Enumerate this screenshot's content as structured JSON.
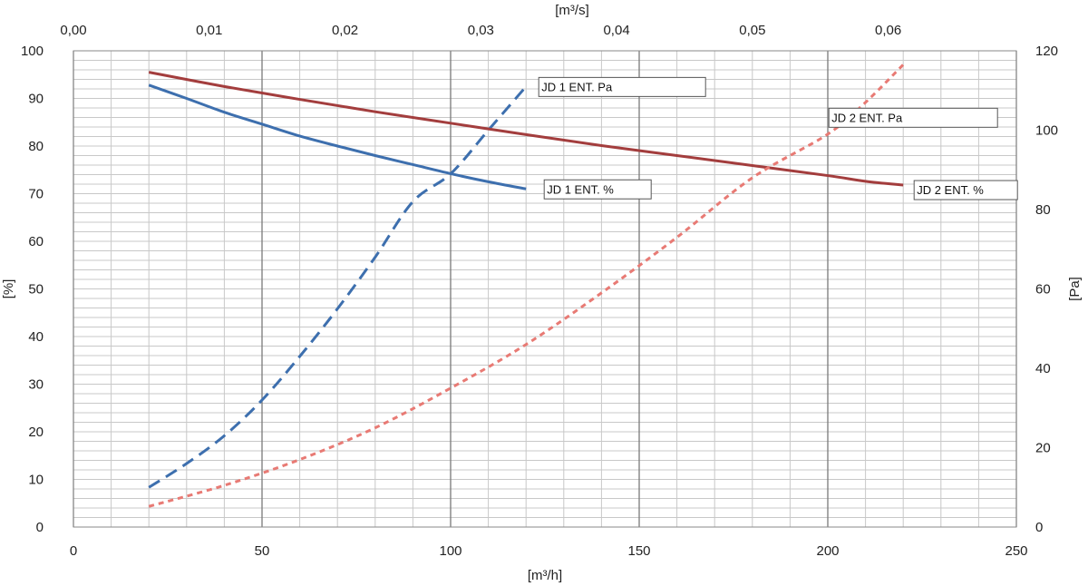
{
  "chart_data": {
    "type": "line",
    "title": "",
    "bottom_axis": {
      "title": "[m³/h]",
      "range": [
        0,
        250
      ],
      "ticks": [
        0,
        50,
        100,
        150,
        200,
        250
      ],
      "tick_labels": [
        "0",
        "50",
        "100",
        "150",
        "200",
        "250"
      ]
    },
    "top_axis": {
      "title": "[m³/s]",
      "range": [
        0,
        0.06944
      ],
      "ticks": [
        0,
        0.01,
        0.02,
        0.03,
        0.04,
        0.05,
        0.06
      ],
      "tick_labels": [
        "0,00",
        "0,01",
        "0,02",
        "0,03",
        "0,04",
        "0,05",
        "0,06"
      ]
    },
    "left_axis": {
      "title": "[%]",
      "range": [
        0,
        100
      ],
      "ticks": [
        0,
        10,
        20,
        30,
        40,
        50,
        60,
        70,
        80,
        90,
        100
      ],
      "tick_labels": [
        "0",
        "10",
        "20",
        "30",
        "40",
        "50",
        "60",
        "70",
        "80",
        "90",
        "100"
      ]
    },
    "right_axis": {
      "title": "[Pa]",
      "range": [
        0,
        120
      ],
      "ticks": [
        0,
        20,
        40,
        60,
        80,
        100,
        120
      ],
      "tick_labels": [
        "0",
        "20",
        "40",
        "60",
        "80",
        "100",
        "120"
      ]
    },
    "grid": true,
    "series": [
      {
        "name": "JD 1 ENT. %",
        "axis": "left",
        "style": "solid",
        "color": "#3d6fae",
        "points": [
          [
            20,
            92.8
          ],
          [
            30,
            90.0
          ],
          [
            40,
            87.1
          ],
          [
            50,
            84.6
          ],
          [
            60,
            82.1
          ],
          [
            70,
            80.0
          ],
          [
            80,
            78.0
          ],
          [
            90,
            76.1
          ],
          [
            100,
            74.2
          ],
          [
            110,
            72.5
          ],
          [
            120,
            71.0
          ]
        ]
      },
      {
        "name": "JD 1 ENT. Pa",
        "axis": "right",
        "style": "dashed",
        "color": "#3d6fae",
        "points": [
          [
            20,
            10
          ],
          [
            30,
            16
          ],
          [
            40,
            23
          ],
          [
            50,
            32
          ],
          [
            60,
            43
          ],
          [
            70,
            55
          ],
          [
            80,
            68
          ],
          [
            90,
            82
          ],
          [
            100,
            89
          ],
          [
            110,
            100
          ],
          [
            120,
            111
          ]
        ]
      },
      {
        "name": "JD 2 ENT. %",
        "axis": "left",
        "style": "solid",
        "color": "#a33d3d",
        "points": [
          [
            20,
            95.5
          ],
          [
            40,
            92.5
          ],
          [
            60,
            89.8
          ],
          [
            80,
            87.2
          ],
          [
            100,
            84.8
          ],
          [
            120,
            82.4
          ],
          [
            140,
            80.1
          ],
          [
            160,
            78.0
          ],
          [
            180,
            75.9
          ],
          [
            200,
            73.8
          ],
          [
            210,
            72.6
          ],
          [
            220,
            71.8
          ]
        ]
      },
      {
        "name": "JD 2 ENT. Pa",
        "axis": "right",
        "style": "dashed",
        "color": "#e87a74",
        "points": [
          [
            20,
            5.2
          ],
          [
            40,
            10.5
          ],
          [
            60,
            17
          ],
          [
            80,
            25
          ],
          [
            100,
            35
          ],
          [
            120,
            46
          ],
          [
            140,
            59
          ],
          [
            160,
            73
          ],
          [
            180,
            88
          ],
          [
            200,
            99
          ],
          [
            210,
            107
          ],
          [
            220,
            116.5
          ]
        ]
      }
    ],
    "annotations": [
      {
        "text": "JD 1 ENT. Pa",
        "series": "JD 1 ENT. Pa"
      },
      {
        "text": "JD 1 ENT. %",
        "series": "JD 1 ENT. %"
      },
      {
        "text": "JD 2 ENT. Pa",
        "series": "JD 2 ENT. Pa"
      },
      {
        "text": "JD 2 ENT. %",
        "series": "JD 2 ENT. %"
      }
    ]
  }
}
